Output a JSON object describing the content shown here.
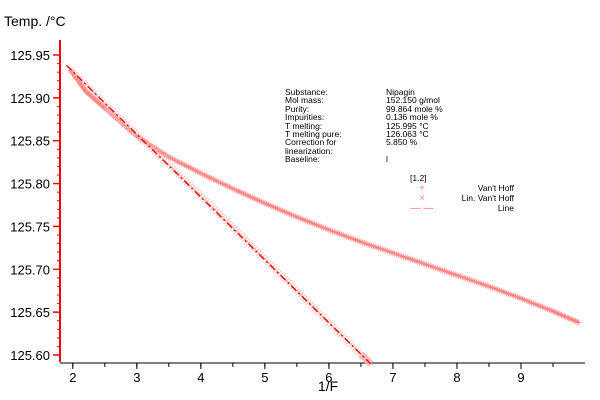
{
  "chart_data": {
    "type": "line",
    "ylabel": "Temp. /°C",
    "xlabel": "1/F",
    "xlim": [
      1.8,
      10.0
    ],
    "ylim": [
      125.6,
      125.95
    ],
    "xticks": [
      2,
      3,
      4,
      5,
      6,
      7,
      8,
      9
    ],
    "yticks": [
      125.6,
      125.65,
      125.7,
      125.75,
      125.8,
      125.85,
      125.9,
      125.95
    ],
    "ytick_labels": [
      "125.60",
      "125.65",
      "125.70",
      "125.75",
      "125.80",
      "125.85",
      "125.90",
      "125.95"
    ],
    "axis_color": "#ff0000",
    "series_color": "#ff8080",
    "line_color": "#e00000",
    "legend_title": "[1.2]",
    "legend_placement": "right",
    "series": [
      {
        "name": "Van't Hoff",
        "marker": "+",
        "x": [
          1.97,
          2.2,
          2.5,
          3.0,
          3.5,
          4.0,
          4.5,
          5.0,
          5.5,
          6.0,
          6.5,
          7.0,
          7.5,
          8.0,
          8.5,
          9.0,
          9.5,
          9.9
        ],
        "y": [
          125.932,
          125.908,
          125.888,
          125.855,
          125.831,
          125.812,
          125.794,
          125.777,
          125.761,
          125.746,
          125.732,
          125.719,
          125.706,
          125.693,
          125.68,
          125.666,
          125.651,
          125.638
        ]
      },
      {
        "name": "Lin. Van't Hoff",
        "marker": "x",
        "x": [
          1.97,
          2.5,
          3.0,
          3.5,
          4.0,
          4.5,
          5.0,
          5.5,
          6.0,
          6.5,
          6.65
        ],
        "y": [
          125.932,
          125.893,
          125.857,
          125.822,
          125.786,
          125.749,
          125.712,
          125.675,
          125.638,
          125.601,
          125.59
        ]
      },
      {
        "name": "Line",
        "style": "dash-dot",
        "x": [
          1.9,
          6.65
        ],
        "y": [
          125.938,
          125.59
        ]
      }
    ]
  },
  "info": [
    {
      "key": "Substance:",
      "value": "Nipagin"
    },
    {
      "key": "Mol mass:",
      "value": "152.150 g/mol"
    },
    {
      "key": "Purity:",
      "value": "99.864 mole %"
    },
    {
      "key": "Impurities:",
      "value": "0.136 mole %"
    },
    {
      "key": "T melting:",
      "value": "125.995 °C"
    },
    {
      "key": "T melting pure:",
      "value": "126.063 °C"
    },
    {
      "key": "Correction for linearization:",
      "value": "5.850 %"
    },
    {
      "key": "Baseline:",
      "value": "l"
    }
  ]
}
